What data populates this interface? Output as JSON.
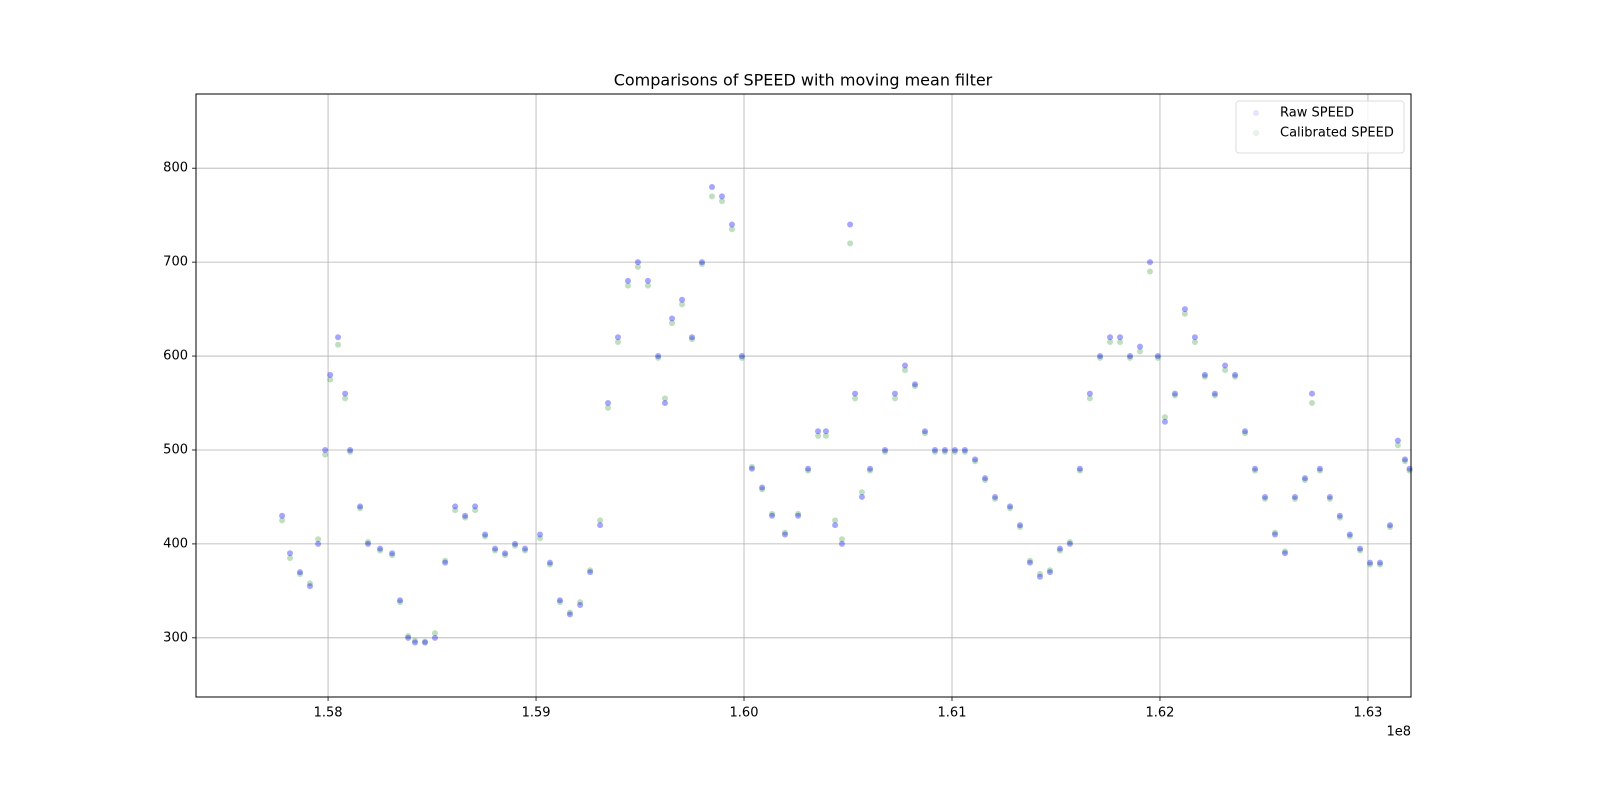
{
  "chart_data": {
    "type": "scatter",
    "title": "Comparisons of SPEED with moving mean filter",
    "x_offset_label": "1e8",
    "x": [
      1.57779,
      1.57817,
      1.57865,
      1.57913,
      1.57952,
      1.57986,
      1.5801,
      1.58048,
      1.58082,
      1.58106,
      1.58154,
      1.58192,
      1.5825,
      1.58308,
      1.58346,
      1.58385,
      1.58418,
      1.58466,
      1.58514,
      1.58563,
      1.58611,
      1.58659,
      1.58707,
      1.58755,
      1.58803,
      1.58851,
      1.58899,
      1.58947,
      1.59019,
      1.59067,
      1.59115,
      1.59163,
      1.59212,
      1.5926,
      1.59308,
      1.59346,
      1.59394,
      1.59442,
      1.5949,
      1.59538,
      1.59587,
      1.5962,
      1.59654,
      1.59702,
      1.5975,
      1.59798,
      1.59846,
      1.59894,
      1.59942,
      1.5999,
      1.60038,
      1.60087,
      1.60135,
      1.60197,
      1.6026,
      1.60308,
      1.60356,
      1.60394,
      1.60438,
      1.60471,
      1.6051,
      1.60534,
      1.60567,
      1.60606,
      1.60678,
      1.60726,
      1.60774,
      1.60822,
      1.6087,
      1.60918,
      1.60966,
      1.61014,
      1.61062,
      1.61111,
      1.61159,
      1.61207,
      1.61279,
      1.61327,
      1.61375,
      1.61423,
      1.61471,
      1.61519,
      1.61567,
      1.61615,
      1.61663,
      1.61712,
      1.6176,
      1.61808,
      1.61856,
      1.61904,
      1.61952,
      1.6199,
      1.62024,
      1.62072,
      1.6212,
      1.62168,
      1.62216,
      1.62264,
      1.62313,
      1.62361,
      1.62409,
      1.62457,
      1.62505,
      1.62553,
      1.62601,
      1.62649,
      1.62697,
      1.62731,
      1.62769,
      1.62817,
      1.62865,
      1.62913,
      1.62962,
      1.6301,
      1.63058,
      1.63106,
      1.63144,
      1.63178,
      1.632
    ],
    "series": [
      {
        "name": "Raw SPEED",
        "color": "#0000ff",
        "values": [
          430,
          390,
          370,
          355,
          400,
          500,
          580,
          620,
          560,
          500,
          440,
          400,
          395,
          390,
          340,
          300,
          295,
          295,
          300,
          380,
          440,
          430,
          440,
          410,
          395,
          390,
          400,
          395,
          410,
          380,
          340,
          325,
          335,
          370,
          420,
          550,
          620,
          680,
          700,
          680,
          600,
          550,
          640,
          660,
          620,
          700,
          780,
          770,
          740,
          600,
          480,
          460,
          430,
          410,
          430,
          480,
          520,
          520,
          420,
          400,
          740,
          560,
          450,
          480,
          500,
          560,
          590,
          570,
          520,
          500,
          500,
          500,
          500,
          490,
          470,
          450,
          440,
          420,
          380,
          365,
          370,
          395,
          400,
          480,
          560,
          600,
          620,
          620,
          600,
          610,
          700,
          600,
          530,
          560,
          650,
          620,
          580,
          560,
          590,
          580,
          520,
          480,
          450,
          410,
          390,
          450,
          470,
          560,
          480,
          450,
          430,
          410,
          395,
          380,
          380,
          420,
          510,
          490,
          480
        ]
      },
      {
        "name": "Calibrated SPEED",
        "color": "#008000",
        "values": [
          425,
          385,
          368,
          358,
          405,
          495,
          575,
          612,
          555,
          498,
          438,
          402,
          393,
          388,
          338,
          302,
          297,
          296,
          305,
          382,
          436,
          428,
          436,
          408,
          393,
          388,
          398,
          393,
          406,
          378,
          338,
          327,
          338,
          372,
          425,
          545,
          615,
          675,
          695,
          675,
          598,
          555,
          635,
          655,
          618,
          698,
          770,
          765,
          735,
          598,
          482,
          458,
          432,
          412,
          432,
          478,
          515,
          515,
          425,
          405,
          720,
          555,
          455,
          478,
          498,
          555,
          585,
          568,
          518,
          498,
          498,
          498,
          498,
          488,
          468,
          448,
          438,
          418,
          382,
          368,
          372,
          393,
          402,
          478,
          555,
          598,
          615,
          615,
          598,
          605,
          690,
          598,
          535,
          558,
          645,
          615,
          578,
          558,
          585,
          578,
          518,
          478,
          448,
          412,
          392,
          448,
          468,
          550,
          478,
          448,
          428,
          408,
          393,
          378,
          378,
          418,
          505,
          488,
          478
        ]
      }
    ],
    "xlim": [
      1.57365,
      1.63207
    ],
    "xticks": [
      1.58,
      1.59,
      {
        "value": 1.6,
        "label": "1.60"
      },
      1.61,
      1.62,
      1.63
    ],
    "ylim": [
      237,
      879
    ],
    "yticks": [
      300,
      400,
      500,
      600,
      700,
      800
    ],
    "grid": true,
    "legend": "upper right"
  }
}
